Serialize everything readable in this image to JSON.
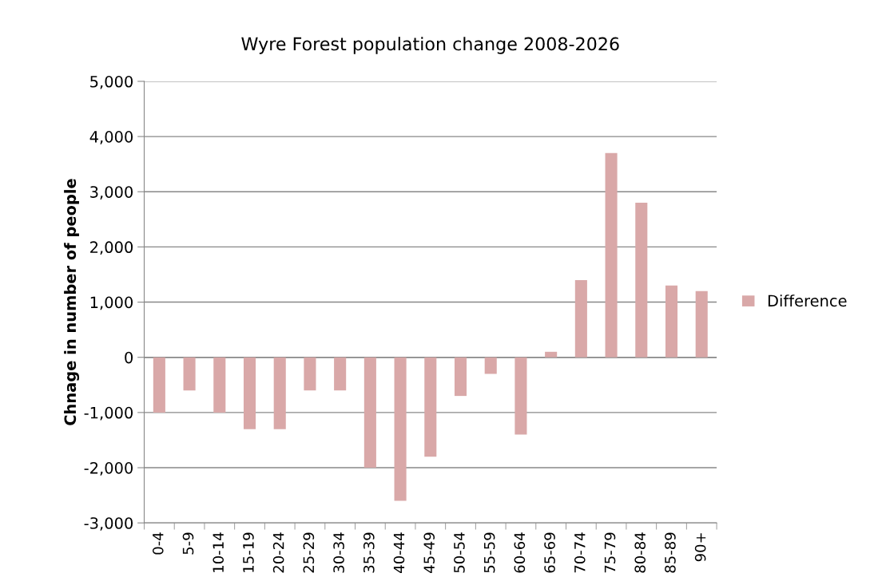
{
  "chart_data": {
    "type": "bar",
    "title": "Wyre Forest population change 2008-2026",
    "ylabel": "Chnage in number of people",
    "categories": [
      "0-4",
      "5-9",
      "10-14",
      "15-19",
      "20-24",
      "25-29",
      "30-34",
      "35-39",
      "40-44",
      "45-49",
      "50-54",
      "55-59",
      "60-64",
      "65-69",
      "70-74",
      "75-79",
      "80-84",
      "85-89",
      "90+"
    ],
    "series": [
      {
        "name": "Difference",
        "color": "#d9a8a8",
        "values": [
          -1000,
          -600,
          -1000,
          -1300,
          -1300,
          -600,
          -600,
          -2000,
          -2600,
          -1800,
          -700,
          -300,
          -1400,
          100,
          1400,
          3700,
          2800,
          1300,
          1200
        ]
      }
    ],
    "ylim": [
      -3000,
      5000
    ],
    "yticks": [
      {
        "value": -3000,
        "label": "-3,000"
      },
      {
        "value": -2000,
        "label": "-2,000"
      },
      {
        "value": -1000,
        "label": "-1,000"
      },
      0,
      {
        "value": 1000,
        "label": "1,000"
      },
      {
        "value": 2000,
        "label": "2,000"
      },
      {
        "value": 3000,
        "label": "3,000"
      },
      {
        "value": 4000,
        "label": "4,000"
      },
      {
        "value": 5000,
        "label": "5,000"
      }
    ],
    "grid": "y",
    "legend": "right"
  }
}
